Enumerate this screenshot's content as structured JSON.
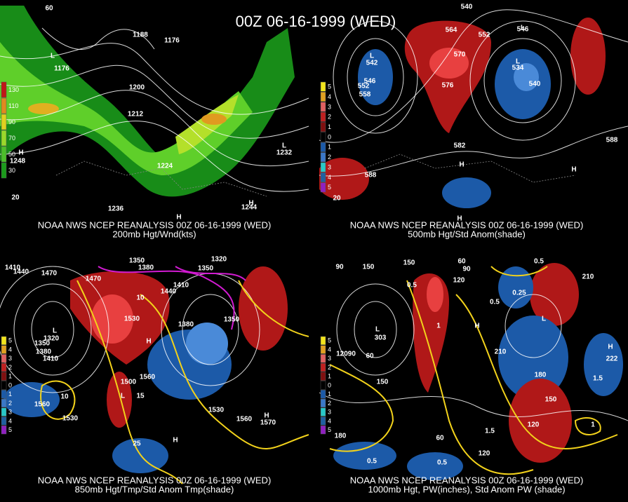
{
  "title": "00Z 06-16-1999 (WED)",
  "panels": [
    {
      "source": "NOAA NWS NCEP REANALYSIS 00Z 06-16-1999 (WED)",
      "caption": "200mb Hgt/Wnd(kts)",
      "legend": [
        "130",
        "110",
        "90",
        "70",
        "50",
        "30"
      ],
      "labels": [
        "60",
        "1188",
        "1176",
        "1176",
        "1200",
        "1212",
        "1224",
        "1236",
        "1232",
        "1244",
        "1248",
        "20",
        "L",
        "L",
        "H",
        "H",
        "H"
      ]
    },
    {
      "source": "NOAA NWS NCEP REANALYSIS 00Z 06-16-1999 (WED)",
      "caption": "500mb Hgt/Std Anom(shade)",
      "legend": [
        "5",
        "4",
        "3",
        "2",
        "1",
        "0",
        "1",
        "2",
        "3",
        "4",
        "5"
      ],
      "labels": [
        "540",
        "564",
        "552",
        "546",
        "570",
        "576",
        "542",
        "546",
        "552",
        "558",
        "534",
        "540",
        "582",
        "588",
        "588",
        "20",
        "L",
        "L",
        "L",
        "H",
        "H",
        "H"
      ]
    },
    {
      "source": "NOAA NWS NCEP REANALYSIS 00Z 06-16-1999 (WED)",
      "caption": "850mb Hgt/Tmp/Std Anom Tmp(shade)",
      "legend": [
        "5",
        "4",
        "3",
        "2",
        "1",
        "0",
        "1",
        "2",
        "3",
        "4",
        "5"
      ],
      "labels": [
        "1410",
        "1440",
        "1470",
        "1350",
        "1380",
        "1320",
        "1350",
        "1410",
        "1440",
        "1470",
        "1530",
        "1380",
        "1350",
        "1560",
        "1500",
        "1530",
        "1560",
        "1530",
        "1560",
        "1570",
        "1320",
        "1350",
        "1380",
        "1410",
        "10",
        "10",
        "15",
        "25",
        "L",
        "L",
        "H",
        "H",
        "H"
      ]
    },
    {
      "source": "NOAA NWS NCEP REANALYSIS 00Z 06-16-1999 (WED)",
      "caption": "1000mb Hgt, PW(inches), Std Anom PW (shade)",
      "legend": [
        "5",
        "4",
        "3",
        "2",
        "1",
        "0",
        "1",
        "2",
        "3",
        "4",
        "5"
      ],
      "labels": [
        "90",
        "150",
        "150",
        "60",
        "90",
        "120",
        "0.5",
        "0.5",
        "210",
        "0.25",
        "0.5",
        "210",
        "1",
        "12090",
        "60",
        "150",
        "180",
        "150",
        "120",
        "120",
        "60",
        "180",
        "0.5",
        "0.5",
        "1.5",
        "1",
        "1.5",
        "222",
        "303",
        "L",
        "L",
        "H",
        "H"
      ]
    }
  ]
}
